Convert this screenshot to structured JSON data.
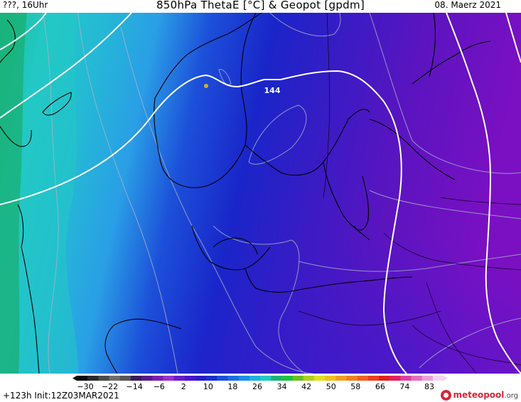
{
  "header": {
    "left": "???, 16Uhr",
    "title": "850hPa ThetaE [°C] & Geopot [gpdm]",
    "right": "08. Maerz 2021"
  },
  "map": {
    "contour_label": "144",
    "colors": {
      "green": "#1ab37c",
      "teal": "#22c9c4",
      "light_blue": "#2a9ee6",
      "blue": "#1c4fd9",
      "dark_blue": "#1a25c9",
      "indigo": "#3a1bc4",
      "violet": "#5a14c0",
      "purple": "#7a10c2"
    }
  },
  "legend": {
    "ticks": [
      "-30",
      "-22",
      "-14",
      "-6",
      "2",
      "10",
      "18",
      "26",
      "34",
      "42",
      "50",
      "58",
      "66",
      "74",
      "83"
    ]
  },
  "footer": {
    "init": "+123h  Init:12Z03MAR2021",
    "logo_main": "meteopool",
    "logo_tld": ".org"
  }
}
